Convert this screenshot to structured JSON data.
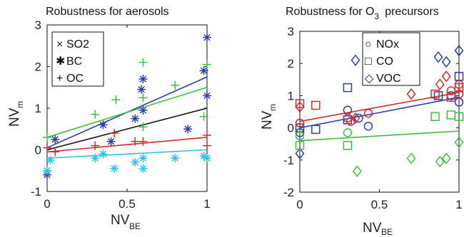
{
  "panels": [
    {
      "title": "Robustness for aerosols",
      "xlabel": "NV",
      "xlabel_sub": "BE",
      "ylabel": "NV",
      "ylabel_sub": "m",
      "legend": [
        {
          "marker": "×",
          "label": "SO2"
        },
        {
          "marker": "✱",
          "label": "BC"
        },
        {
          "marker": "+",
          "label": "OC"
        }
      ]
    },
    {
      "title": "Robustness for O",
      "title_sub": "3",
      "title_rest": "precursors",
      "xlabel": "NV",
      "xlabel_sub": "BE",
      "ylabel": "NV",
      "ylabel_sub": "m",
      "legend": [
        {
          "marker": "○",
          "label": "NOx"
        },
        {
          "marker": "□",
          "label": "CO"
        },
        {
          "marker": "◇",
          "label": "VOC"
        }
      ]
    }
  ],
  "chart_data": [
    {
      "type": "scatter",
      "title": "Robustness for aerosols",
      "xlabel": "NV_BE",
      "ylabel": "NV_m",
      "xlim": [
        0,
        1
      ],
      "ylim": [
        -1,
        3
      ],
      "xticks": [
        "0",
        "0.5",
        "1"
      ],
      "yticks": [
        "-1",
        "0",
        "1",
        "2",
        "3"
      ],
      "grid": false,
      "legend_position": "top-left",
      "colors": {
        "blue": "#2b3fa8",
        "red": "#d42a2a",
        "green": "#3fbf3f",
        "cyan": "#34c0ea",
        "black": "#111111"
      },
      "series": [
        {
          "color": "blue",
          "points": [
            [
              0.0,
              -0.6
            ],
            [
              0.05,
              0.25
            ],
            [
              0.35,
              0.6
            ],
            [
              0.55,
              0.75
            ],
            [
              0.59,
              1.45
            ],
            [
              0.6,
              1.7
            ],
            [
              0.6,
              0.95
            ],
            [
              0.98,
              1.9
            ],
            [
              1.0,
              2.7
            ],
            [
              1.0,
              1.3
            ],
            [
              0.88,
              0.5
            ],
            [
              0.4,
              0.2
            ]
          ]
        },
        {
          "color": "red",
          "points": [
            [
              0.0,
              0.05
            ],
            [
              0.05,
              -0.05
            ],
            [
              0.3,
              0.1
            ],
            [
              0.42,
              0.4
            ],
            [
              0.55,
              0.2
            ],
            [
              0.6,
              0.2
            ],
            [
              1.0,
              0.35
            ],
            [
              1.0,
              0.1
            ]
          ]
        },
        {
          "color": "green",
          "points": [
            [
              0.0,
              0.3
            ],
            [
              0.3,
              0.85
            ],
            [
              0.43,
              1.2
            ],
            [
              0.6,
              2.1
            ],
            [
              0.6,
              1.25
            ],
            [
              0.6,
              0.55
            ],
            [
              0.8,
              1.55
            ],
            [
              1.0,
              2.05
            ],
            [
              0.98,
              0.8
            ]
          ]
        },
        {
          "color": "cyan",
          "points": [
            [
              0.0,
              -0.5
            ],
            [
              0.02,
              -0.25
            ],
            [
              0.3,
              -0.2
            ],
            [
              0.35,
              -0.1
            ],
            [
              0.42,
              -0.45
            ],
            [
              0.55,
              -0.3
            ],
            [
              0.6,
              -0.45
            ],
            [
              0.6,
              -0.2
            ],
            [
              0.8,
              -0.2
            ],
            [
              0.98,
              -0.15
            ],
            [
              1.0,
              -0.2
            ]
          ]
        }
      ],
      "fit_lines": [
        {
          "color": "blue",
          "x": [
            0,
            1
          ],
          "y": [
            0.05,
            1.75
          ]
        },
        {
          "color": "green",
          "x": [
            0,
            1
          ],
          "y": [
            0.3,
            1.5
          ]
        },
        {
          "color": "black",
          "x": [
            0,
            1
          ],
          "y": [
            0.0,
            1.0
          ]
        },
        {
          "color": "red",
          "x": [
            0,
            1
          ],
          "y": [
            -0.05,
            0.3
          ]
        },
        {
          "color": "cyan",
          "x": [
            0,
            1
          ],
          "y": [
            -0.2,
            0.0
          ]
        }
      ]
    },
    {
      "type": "scatter",
      "title": "Robustness for O3 precursors",
      "xlabel": "NV_BE",
      "ylabel": "NV_m",
      "xlim": [
        0,
        1
      ],
      "ylim": [
        -2,
        3
      ],
      "xticks": [
        "0",
        "0.5",
        "1"
      ],
      "yticks": [
        "-2",
        "-1",
        "0",
        "1",
        "2",
        "3"
      ],
      "grid": false,
      "legend_position": "top-center",
      "colors": {
        "blue": "#2b3fa8",
        "red": "#d42a2a",
        "green": "#3fbf3f"
      },
      "series": [
        {
          "color": "blue",
          "marker": "circle",
          "points": [
            [
              0.0,
              -0.15
            ],
            [
              0.3,
              0.55
            ],
            [
              0.37,
              0.3
            ],
            [
              0.43,
              0.05
            ],
            [
              0.95,
              1.0
            ],
            [
              1.0,
              0.8
            ]
          ]
        },
        {
          "color": "blue",
          "marker": "square",
          "points": [
            [
              0.3,
              1.25
            ],
            [
              0.3,
              0.25
            ],
            [
              0.1,
              -0.05
            ],
            [
              0.87,
              1.0
            ],
            [
              1.0,
              1.6
            ],
            [
              0.0,
              0.0
            ]
          ]
        },
        {
          "color": "blue",
          "marker": "diamond",
          "points": [
            [
              0.35,
              2.1
            ],
            [
              0.71,
              1.95
            ],
            [
              0.87,
              2.2
            ],
            [
              0.92,
              2.05
            ],
            [
              1.0,
              2.4
            ],
            [
              0.0,
              -0.8
            ]
          ]
        },
        {
          "color": "red",
          "marker": "circle",
          "points": [
            [
              0.0,
              0.15
            ],
            [
              0.3,
              0.3
            ],
            [
              0.32,
              0.2
            ],
            [
              0.43,
              0.45
            ],
            [
              0.95,
              1.15
            ],
            [
              1.0,
              1.35
            ],
            [
              1.0,
              1.05
            ]
          ]
        },
        {
          "color": "red",
          "marker": "square",
          "points": [
            [
              0.0,
              0.75
            ],
            [
              0.1,
              0.7
            ],
            [
              0.85,
              1.05
            ],
            [
              0.95,
              0.95
            ],
            [
              1.0,
              1.25
            ]
          ]
        },
        {
          "color": "red",
          "marker": "diamond",
          "points": [
            [
              0.0,
              0.65
            ],
            [
              0.35,
              0.3
            ],
            [
              0.7,
              1.05
            ],
            [
              0.88,
              1.35
            ],
            [
              0.92,
              1.6
            ]
          ]
        },
        {
          "color": "green",
          "marker": "circle",
          "points": [
            [
              0.0,
              -0.25
            ],
            [
              0.3,
              -0.15
            ]
          ]
        },
        {
          "color": "green",
          "marker": "square",
          "points": [
            [
              0.0,
              -0.55
            ],
            [
              0.3,
              -0.55
            ],
            [
              0.85,
              0.35
            ],
            [
              0.95,
              0.4
            ],
            [
              1.0,
              0.35
            ]
          ]
        },
        {
          "color": "green",
          "marker": "diamond",
          "points": [
            [
              0.36,
              -1.35
            ],
            [
              0.7,
              -0.95
            ],
            [
              0.88,
              -1.05
            ],
            [
              0.92,
              -0.95
            ],
            [
              1.0,
              -0.45
            ]
          ]
        }
      ],
      "fit_lines": [
        {
          "color": "red",
          "x": [
            0,
            1
          ],
          "y": [
            0.2,
            1.1
          ]
        },
        {
          "color": "blue",
          "x": [
            0,
            1
          ],
          "y": [
            0.0,
            0.95
          ]
        },
        {
          "color": "green",
          "x": [
            0,
            1
          ],
          "y": [
            -0.4,
            -0.1
          ]
        }
      ]
    }
  ]
}
